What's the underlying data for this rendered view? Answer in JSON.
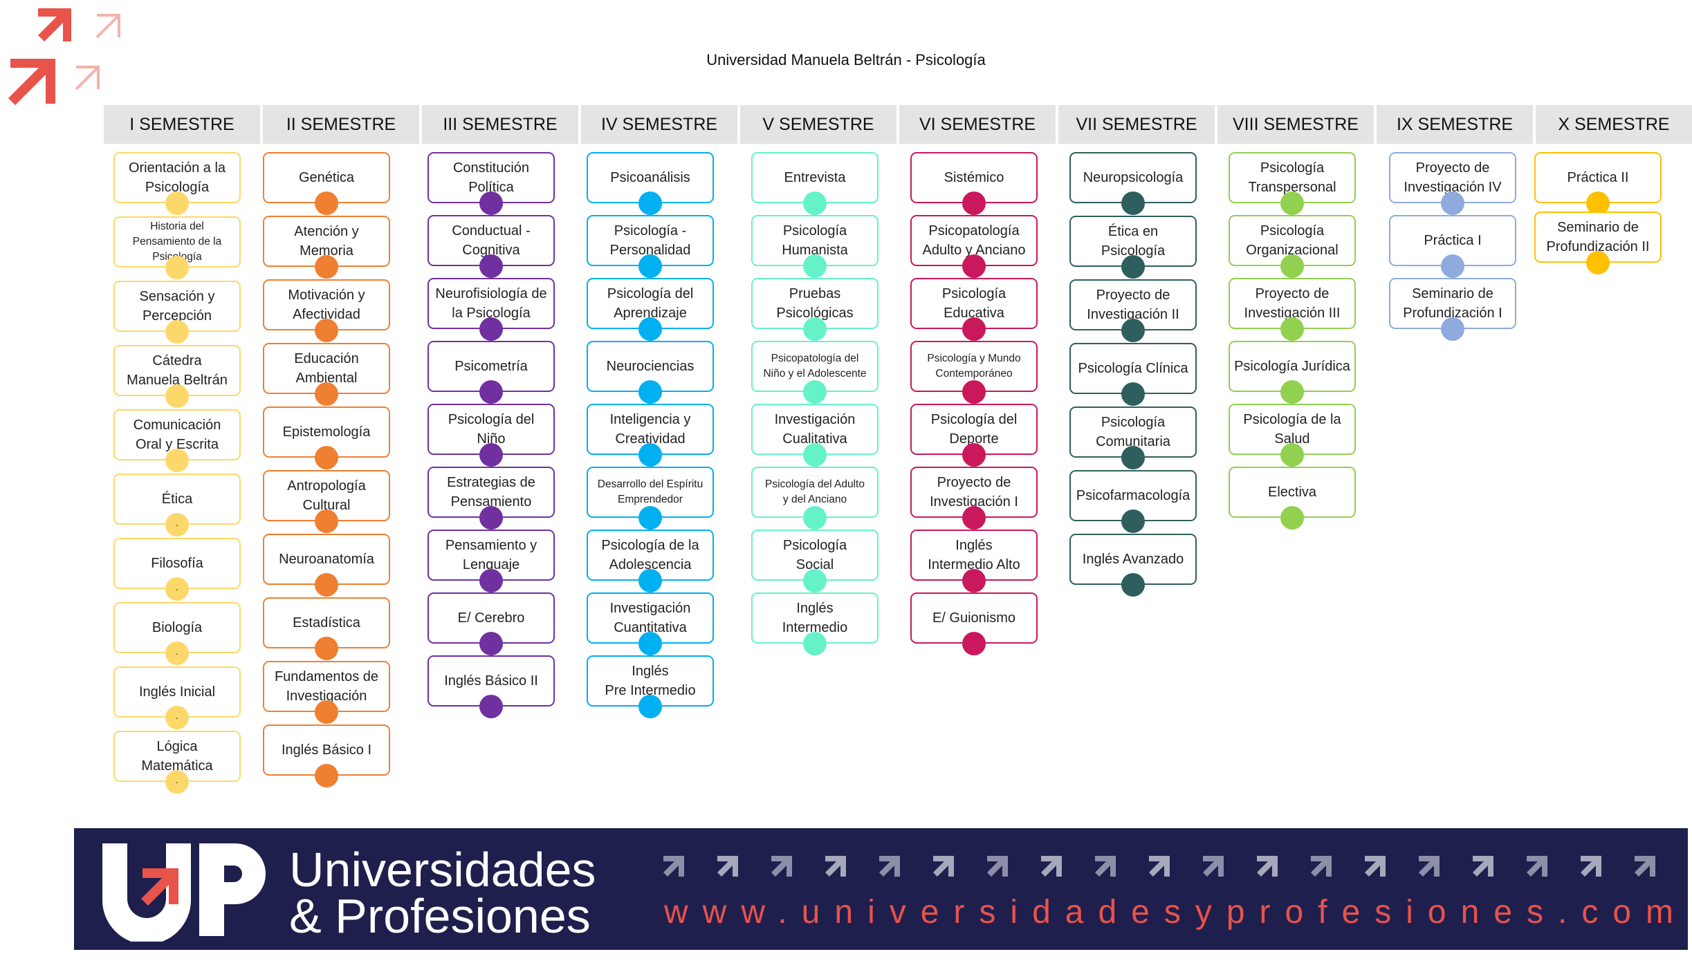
{
  "title": "Universidad Manuela Beltrán - Psicología",
  "colors": {
    "header_bg": "#e4e4e4",
    "banner_bg": "#1f1f4e",
    "accent": "#e8534a"
  },
  "semesters": [
    {
      "name": "I SEMESTRE",
      "color": "#fcd86a",
      "courses": [
        {
          "label": "Orientación a la\nPsicología"
        },
        {
          "label": "Historia del\nPensamiento de la\nPsicología",
          "small": true
        },
        {
          "label": "Sensación y\nPercepción"
        },
        {
          "label": "Cátedra\nManuela Beltrán"
        },
        {
          "label": "Comunicación\nOral y Escrita"
        },
        {
          "label": "Ética",
          "mark": "."
        },
        {
          "label": "Filosofía",
          "mark": "."
        },
        {
          "label": "Biología",
          "mark": "."
        },
        {
          "label": "Inglés Inicial",
          "mark": "."
        },
        {
          "label": "Lógica\nMatemática",
          "mark": "."
        }
      ]
    },
    {
      "name": "II SEMESTRE",
      "color": "#ef7f31",
      "courses": [
        {
          "label": "Genética"
        },
        {
          "label": "Atención y\nMemoria"
        },
        {
          "label": "Motivación y\nAfectividad"
        },
        {
          "label": "Educación\nAmbiental"
        },
        {
          "label": "Epistemología"
        },
        {
          "label": "Antropología\nCultural"
        },
        {
          "label": "Neuroanatomía"
        },
        {
          "label": "Estadística"
        },
        {
          "label": "Fundamentos de\nInvestigación"
        },
        {
          "label": "Inglés Básico I"
        }
      ]
    },
    {
      "name": "III SEMESTRE",
      "color": "#7030a0",
      "courses": [
        {
          "label": "Constitución\nPolítica"
        },
        {
          "label": "Conductual -\nCognitiva"
        },
        {
          "label": "Neurofisiología de\nla Psicología"
        },
        {
          "label": "Psicometría"
        },
        {
          "label": "Psicología del\nNiño"
        },
        {
          "label": "Estrategias de\nPensamiento"
        },
        {
          "label": "Pensamiento y\nLenguaje"
        },
        {
          "label": "E/ Cerebro"
        },
        {
          "label": "Inglés Básico II"
        }
      ]
    },
    {
      "name": "IV SEMESTRE",
      "color": "#00b0f0",
      "courses": [
        {
          "label": "Psicoanálisis"
        },
        {
          "label": "Psicología -\nPersonalidad"
        },
        {
          "label": "Psicología del\nAprendizaje"
        },
        {
          "label": "Neurociencias"
        },
        {
          "label": "Inteligencia y\nCreatividad"
        },
        {
          "label": "Desarrollo del Espíritu\nEmprendedor",
          "small": true
        },
        {
          "label": "Psicología de la\nAdolescencia"
        },
        {
          "label": "Investigación\nCuantitativa"
        },
        {
          "label": "Inglés\nPre Intermedio"
        }
      ]
    },
    {
      "name": "V SEMESTRE",
      "color": "#66f2c9",
      "courses": [
        {
          "label": "Entrevista"
        },
        {
          "label": "Psicología\nHumanista"
        },
        {
          "label": "Pruebas\nPsicológicas"
        },
        {
          "label": "Psicopatología del\nNiño y el Adolescente",
          "small": true
        },
        {
          "label": "Investigación\nCualitativa"
        },
        {
          "label": "Psicología del Adulto\ny del Anciano",
          "small": true
        },
        {
          "label": "Psicología\nSocial"
        },
        {
          "label": "Inglés\nIntermedio"
        }
      ]
    },
    {
      "name": "VI SEMESTRE",
      "color": "#c9185b",
      "courses": [
        {
          "label": "Sistémico"
        },
        {
          "label": "Psicopatología\nAdulto y Anciano"
        },
        {
          "label": "Psicología\nEducativa"
        },
        {
          "label": "Psicología y Mundo\nContemporáneo",
          "small": true
        },
        {
          "label": "Psicología del\nDeporte"
        },
        {
          "label": "Proyecto de\nInvestigación I"
        },
        {
          "label": "Inglés\nIntermedio Alto"
        },
        {
          "label": "E/ Guionismo"
        }
      ]
    },
    {
      "name": "VII SEMESTRE",
      "color": "#2e5e5e",
      "courses": [
        {
          "label": "Neuropsicología"
        },
        {
          "label": "Ética en Psicología"
        },
        {
          "label": "Proyecto de\nInvestigación II"
        },
        {
          "label": "Psicología Clínica"
        },
        {
          "label": "Psicología\nComunitaria"
        },
        {
          "label": "Psicofarmacología"
        },
        {
          "label": "Inglés Avanzado"
        }
      ]
    },
    {
      "name": "VIII SEMESTRE",
      "color": "#92d050",
      "courses": [
        {
          "label": "Psicología\nTranspersonal"
        },
        {
          "label": "Psicología\nOrganizacional"
        },
        {
          "label": "Proyecto de\nInvestigación III"
        },
        {
          "label": "Psicología Jurídica"
        },
        {
          "label": "Psicología de la\nSalud"
        },
        {
          "label": "Electiva"
        }
      ]
    },
    {
      "name": "IX SEMESTRE",
      "color": "#8faadc",
      "courses": [
        {
          "label": "Proyecto de\nInvestigación IV"
        },
        {
          "label": "Práctica I"
        },
        {
          "label": "Seminario de\nProfundización I"
        }
      ]
    },
    {
      "name": "X SEMESTRE",
      "color": "#ffc000",
      "courses": [
        {
          "label": "Práctica II"
        },
        {
          "label": "Seminario de\nProfundización II"
        }
      ]
    }
  ],
  "banner": {
    "logo_letters": "UP",
    "brand_line1": "Universidades",
    "brand_line2": "& Profesiones",
    "url": "www.universidadesyprofesiones.com"
  }
}
